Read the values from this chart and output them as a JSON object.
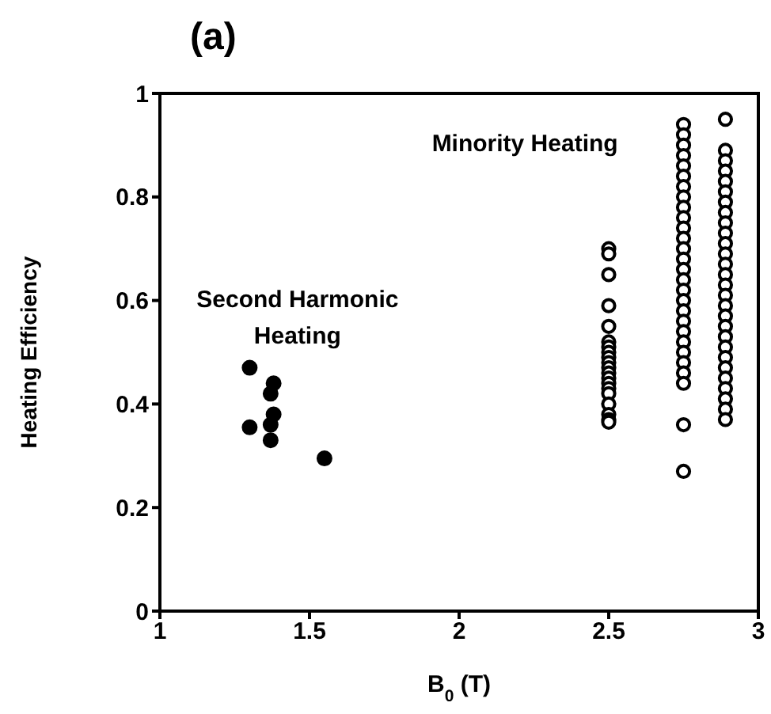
{
  "chart_data": {
    "type": "scatter",
    "title": "(a)",
    "xlabel": "B$_{0}$ (T)",
    "ylabel": "Heating Efficiency",
    "xlim": [
      1,
      3
    ],
    "xticks": [
      1,
      1.5,
      2,
      2.5,
      3
    ],
    "ylim": [
      0,
      1
    ],
    "yticks": [
      0,
      0.2,
      0.4,
      0.6,
      0.8,
      1
    ],
    "grid": false,
    "legend": false,
    "annotations": [
      "Second Harmonic Heating",
      "Minority Heating"
    ],
    "series": [
      {
        "color": "#000000",
        "marker": "circle",
        "x": [
          1.3,
          1.3,
          1.37,
          1.38,
          1.38,
          1.37,
          1.37,
          1.55
        ],
        "values": [
          0.47,
          0.355,
          0.42,
          0.44,
          0.38,
          0.36,
          0.33,
          0.295
        ]
      },
      {
        "color": "#000000",
        "marker": "circle-open",
        "x": [
          2.5,
          2.5,
          2.5,
          2.5,
          2.5,
          2.5,
          2.5,
          2.5,
          2.5,
          2.5,
          2.5,
          2.5,
          2.5,
          2.5,
          2.5,
          2.5,
          2.5,
          2.5,
          2.5,
          2.5,
          2.75,
          2.75,
          2.75,
          2.75,
          2.75,
          2.75,
          2.75,
          2.75,
          2.75,
          2.75,
          2.75,
          2.75,
          2.75,
          2.75,
          2.75,
          2.75,
          2.75,
          2.75,
          2.75,
          2.75,
          2.75,
          2.75,
          2.75,
          2.75,
          2.75,
          2.75,
          2.75,
          2.75,
          2.89,
          2.89,
          2.89,
          2.89,
          2.89,
          2.89,
          2.89,
          2.89,
          2.89,
          2.89,
          2.89,
          2.89,
          2.89,
          2.89,
          2.89,
          2.89,
          2.89,
          2.89,
          2.89,
          2.89,
          2.89,
          2.89,
          2.89,
          2.89,
          2.89,
          2.89,
          2.89,
          2.89
        ],
        "values": [
          0.7,
          0.69,
          0.65,
          0.59,
          0.55,
          0.52,
          0.51,
          0.5,
          0.49,
          0.48,
          0.47,
          0.46,
          0.45,
          0.44,
          0.43,
          0.42,
          0.4,
          0.38,
          0.37,
          0.365,
          0.94,
          0.92,
          0.9,
          0.88,
          0.86,
          0.84,
          0.82,
          0.8,
          0.78,
          0.76,
          0.74,
          0.72,
          0.7,
          0.68,
          0.66,
          0.64,
          0.62,
          0.6,
          0.58,
          0.56,
          0.54,
          0.52,
          0.5,
          0.48,
          0.46,
          0.44,
          0.36,
          0.27,
          0.95,
          0.89,
          0.87,
          0.85,
          0.83,
          0.81,
          0.79,
          0.77,
          0.75,
          0.73,
          0.71,
          0.69,
          0.67,
          0.65,
          0.63,
          0.61,
          0.59,
          0.57,
          0.55,
          0.53,
          0.51,
          0.49,
          0.47,
          0.45,
          0.43,
          0.41,
          0.39,
          0.37
        ]
      }
    ]
  }
}
